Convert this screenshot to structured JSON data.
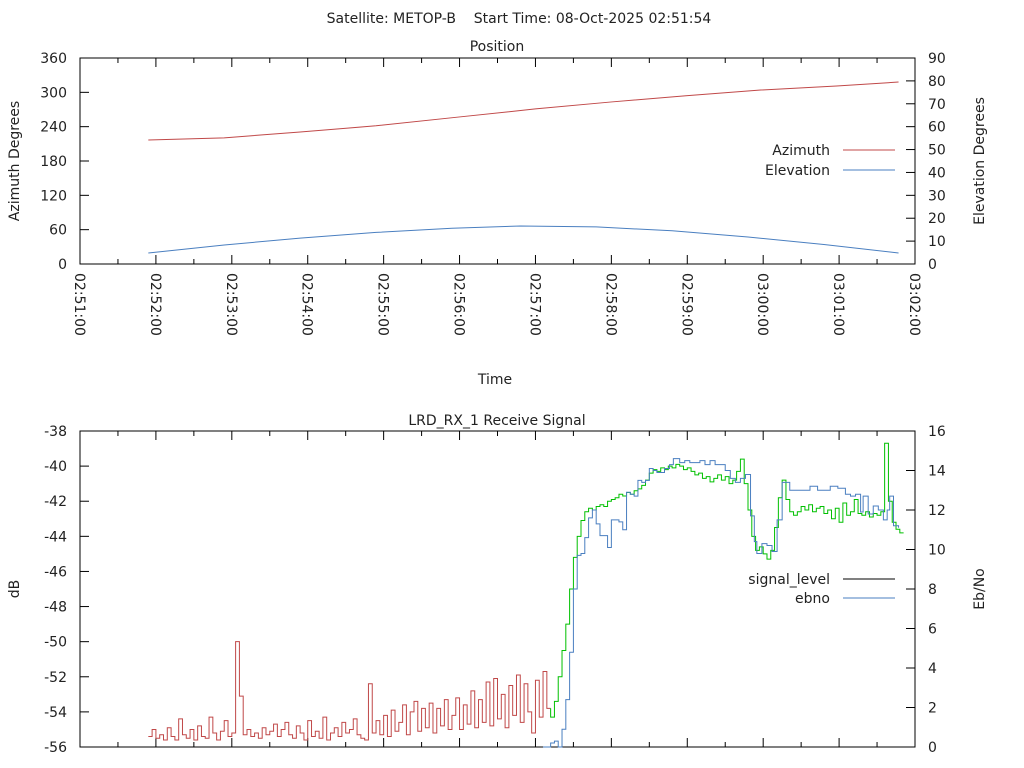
{
  "colors": {
    "azimuth": "#c04848",
    "elevation": "#4a7fc0",
    "signal_low": "#c04848",
    "signal_good": "#00c000",
    "ebno": "#4a7fc0",
    "legend_signal": "#000000"
  },
  "chart_data": [
    {
      "type": "line",
      "suptitle": "Satellite: METOP-B    Start Time: 08-Oct-2025 02:51:54",
      "title": "Position",
      "xlabel": "Time",
      "ylabel": "Azimuth Degrees",
      "y2label": "Elevation Degrees",
      "x_unit": "seconds after 02:51:00",
      "xlim": [
        0,
        660
      ],
      "ylim": [
        0,
        360
      ],
      "y2lim": [
        0,
        90
      ],
      "x_ticks": [
        "02:51:00",
        "02:52:00",
        "02:53:00",
        "02:54:00",
        "02:55:00",
        "02:56:00",
        "02:57:00",
        "02:58:00",
        "02:59:00",
        "03:00:00",
        "03:01:00",
        "03:02:00"
      ],
      "y_ticks": [
        "0",
        "60",
        "120",
        "180",
        "240",
        "300",
        "360"
      ],
      "y2_ticks": [
        "0",
        "10",
        "20",
        "30",
        "40",
        "50",
        "60",
        "70",
        "80",
        "90"
      ],
      "legend": "right",
      "series": [
        {
          "name": "Azimuth",
          "axis": "y",
          "points": [
            [
              54,
              216.7
            ],
            [
              114,
              220.5
            ],
            [
              174,
              230.7
            ],
            [
              234,
              241.5
            ],
            [
              300,
              257
            ],
            [
              360,
              271
            ],
            [
              419,
              283
            ],
            [
              479,
              294
            ],
            [
              538,
              304
            ],
            [
              598,
              311
            ],
            [
              647,
              318
            ]
          ]
        },
        {
          "name": "Elevation",
          "axis": "y2",
          "points": [
            [
              54,
              4.8
            ],
            [
              114,
              8.3
            ],
            [
              174,
              11.3
            ],
            [
              234,
              13.8
            ],
            [
              294,
              15.6
            ],
            [
              348,
              16.6
            ],
            [
              408,
              16.2
            ],
            [
              468,
              14.5
            ],
            [
              528,
              11.8
            ],
            [
              588,
              8.5
            ],
            [
              647,
              4.8
            ]
          ]
        }
      ]
    },
    {
      "type": "line",
      "title": "LRD_RX_1 Receive Signal",
      "ylabel": "dB",
      "y2label": "Eb/No",
      "x_unit": "seconds after 02:51:00",
      "xlim": [
        0,
        660
      ],
      "ylim": [
        -56,
        -38
      ],
      "y2lim": [
        0,
        16
      ],
      "y_ticks": [
        "-56",
        "-54",
        "-52",
        "-50",
        "-48",
        "-46",
        "-44",
        "-42",
        "-40",
        "-38"
      ],
      "y2_ticks": [
        "0",
        "2",
        "4",
        "6",
        "8",
        "10",
        "12",
        "14",
        "16"
      ],
      "legend": "right",
      "series": [
        {
          "name": "signal_level",
          "axis": "y",
          "t_start": 54,
          "dt": 3,
          "good_from": 372,
          "values": [
            -55.4,
            -55.0,
            -55.5,
            -55.3,
            -55.6,
            -54.9,
            -55.4,
            -55.6,
            -54.4,
            -55.3,
            -55.5,
            -55.0,
            -55.6,
            -54.8,
            -55.4,
            -55.5,
            -54.3,
            -55.2,
            -55.6,
            -55.1,
            -54.5,
            -55.4,
            -55.2,
            -50.0,
            -53.1,
            -55.3,
            -55.0,
            -55.4,
            -55.2,
            -55.5,
            -54.9,
            -55.3,
            -55.1,
            -54.7,
            -55.4,
            -55.0,
            -54.6,
            -55.3,
            -55.5,
            -54.8,
            -55.2,
            -55.6,
            -54.5,
            -55.4,
            -55.1,
            -55.5,
            -54.3,
            -55.6,
            -55.2,
            -54.9,
            -55.4,
            -54.6,
            -55.2,
            -55.0,
            -54.4,
            -55.3,
            -55.5,
            -55.6,
            -52.4,
            -55.2,
            -54.5,
            -55.3,
            -54.2,
            -55.4,
            -53.9,
            -55.1,
            -54.6,
            -53.6,
            -55.3,
            -54.0,
            -53.4,
            -55.1,
            -53.8,
            -54.9,
            -53.5,
            -55.2,
            -53.8,
            -54.8,
            -53.3,
            -55.0,
            -54.2,
            -53.2,
            -55.0,
            -53.6,
            -54.7,
            -52.8,
            -54.9,
            -53.3,
            -54.6,
            -52.3,
            -54.8,
            -52.1,
            -54.4,
            -53.0,
            -54.9,
            -52.5,
            -54.2,
            -51.9,
            -54.6,
            -52.4,
            -54.0,
            -55.2,
            -52.2,
            -54.3,
            -51.7,
            -53.8,
            -54.3,
            -53.4,
            -52.0,
            -50.5,
            -49.0,
            -47.0,
            -45.2,
            -44.0,
            -43.1,
            -42.6,
            -42.4,
            -42.5,
            -42.3,
            -42.2,
            -42.3,
            -42.0,
            -41.9,
            -41.8,
            -41.6,
            -41.7,
            -41.5,
            -41.6,
            -41.4,
            -41.3,
            -41.1,
            -40.8,
            -40.4,
            -40.2,
            -40.3,
            -40.1,
            -40.2,
            -40.0,
            -40.1,
            -39.9,
            -40.0,
            -40.2,
            -40.1,
            -40.3,
            -40.5,
            -40.4,
            -40.7,
            -40.6,
            -40.9,
            -40.7,
            -40.5,
            -40.8,
            -40.6,
            -41.0,
            -40.8,
            -40.3,
            -39.6,
            -41.0,
            -42.5,
            -44.0,
            -44.8,
            -44.6,
            -45.0,
            -45.3,
            -44.8,
            -43.5,
            -41.8,
            -40.8,
            -41.9,
            -42.6,
            -42.8,
            -42.6,
            -42.3,
            -42.5,
            -42.2,
            -42.6,
            -42.4,
            -42.3,
            -42.7,
            -42.5,
            -43.0,
            -42.4,
            -43.2,
            -42.1,
            -42.8,
            -42.6,
            -41.9,
            -42.7,
            -42.8,
            -42.6,
            -42.9,
            -42.7,
            -42.8,
            -42.6,
            -38.7,
            -42.0,
            -43.2,
            -43.6,
            -43.8
          ]
        },
        {
          "name": "ebno",
          "axis": "y2",
          "points": [
            [
              366,
              0
            ],
            [
              372,
              0.2
            ],
            [
              375,
              0.3
            ],
            [
              378,
              0
            ],
            [
              381,
              0.9
            ],
            [
              384,
              2.4
            ],
            [
              387,
              4.8
            ],
            [
              390,
              8.0
            ],
            [
              393,
              9.7
            ],
            [
              396,
              9.8
            ],
            [
              399,
              10.6
            ],
            [
              402,
              11.6
            ],
            [
              405,
              12.0
            ],
            [
              408,
              11.3
            ],
            [
              411,
              10.7
            ],
            [
              414,
              10.7
            ],
            [
              417,
              10.1
            ],
            [
              420,
              11.5
            ],
            [
              423,
              11.5
            ],
            [
              426,
              11.4
            ],
            [
              429,
              11.0
            ],
            [
              432,
              12.9
            ],
            [
              435,
              12.8
            ],
            [
              438,
              12.7
            ],
            [
              441,
              13.5
            ],
            [
              444,
              13.4
            ],
            [
              447,
              13.5
            ],
            [
              450,
              14.1
            ],
            [
              453,
              14.0
            ],
            [
              456,
              13.9
            ],
            [
              462,
              14.1
            ],
            [
              466,
              14.3
            ],
            [
              469,
              14.6
            ],
            [
              474,
              14.4
            ],
            [
              478,
              14.5
            ],
            [
              482,
              14.4
            ],
            [
              486,
              14.4
            ],
            [
              490,
              14.5
            ],
            [
              494,
              14.3
            ],
            [
              498,
              14.5
            ],
            [
              502,
              14.3
            ],
            [
              506,
              14.3
            ],
            [
              510,
              14.0
            ],
            [
              514,
              13.6
            ],
            [
              518,
              13.4
            ],
            [
              522,
              13.6
            ],
            [
              526,
              13.8
            ],
            [
              530,
              11.7
            ],
            [
              533,
              10.4
            ],
            [
              535,
              9.8
            ],
            [
              539,
              10.3
            ],
            [
              543,
              10.2
            ],
            [
              547,
              9.9
            ],
            [
              551,
              11.5
            ],
            [
              555,
              13.4
            ],
            [
              561,
              13.0
            ],
            [
              567,
              13.0
            ],
            [
              573,
              13.0
            ],
            [
              577,
              13.2
            ],
            [
              583,
              13.0
            ],
            [
              589,
              13.0
            ],
            [
              593,
              13.2
            ],
            [
              599,
              13.1
            ],
            [
              605,
              12.8
            ],
            [
              609,
              12.7
            ],
            [
              613,
              12.8
            ],
            [
              617,
              11.9
            ],
            [
              619,
              12.7
            ],
            [
              623,
              11.8
            ],
            [
              627,
              12.2
            ],
            [
              631,
              12.0
            ],
            [
              635,
              11.5
            ],
            [
              638,
              12.0
            ],
            [
              640,
              12.7
            ],
            [
              643,
              11.2
            ],
            [
              647,
              11.1
            ]
          ]
        }
      ]
    }
  ]
}
